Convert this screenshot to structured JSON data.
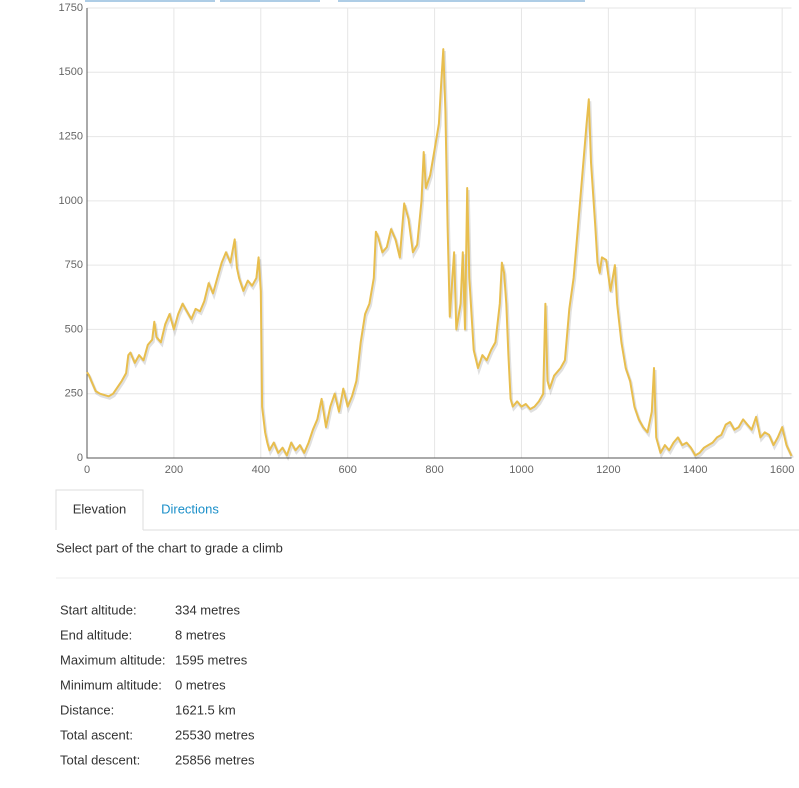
{
  "chart_data": {
    "type": "line",
    "x": [
      0,
      5,
      10,
      20,
      30,
      50,
      60,
      80,
      90,
      95,
      100,
      110,
      120,
      130,
      140,
      150,
      155,
      160,
      170,
      180,
      190,
      200,
      210,
      220,
      230,
      240,
      250,
      260,
      270,
      280,
      290,
      300,
      310,
      320,
      330,
      340,
      345,
      350,
      360,
      370,
      380,
      390,
      395,
      400,
      403,
      410,
      415,
      420,
      430,
      440,
      450,
      460,
      470,
      480,
      490,
      500,
      510,
      520,
      530,
      540,
      550,
      560,
      570,
      580,
      590,
      600,
      610,
      620,
      630,
      640,
      650,
      660,
      665,
      670,
      680,
      690,
      700,
      710,
      720,
      730,
      740,
      750,
      760,
      770,
      775,
      780,
      790,
      800,
      810,
      815,
      820,
      825,
      830,
      835,
      845,
      850,
      860,
      865,
      870,
      875,
      880,
      890,
      900,
      910,
      920,
      930,
      940,
      950,
      955,
      960,
      965,
      970,
      975,
      980,
      990,
      1000,
      1010,
      1020,
      1030,
      1040,
      1050,
      1055,
      1060,
      1065,
      1075,
      1090,
      1100,
      1110,
      1120,
      1130,
      1140,
      1150,
      1155,
      1160,
      1170,
      1175,
      1180,
      1185,
      1195,
      1205,
      1210,
      1215,
      1220,
      1230,
      1240,
      1250,
      1260,
      1270,
      1280,
      1290,
      1300,
      1305,
      1310,
      1320,
      1330,
      1340,
      1350,
      1360,
      1370,
      1380,
      1390,
      1400,
      1410,
      1420,
      1430,
      1440,
      1450,
      1460,
      1470,
      1480,
      1490,
      1500,
      1510,
      1520,
      1530,
      1540,
      1550,
      1560,
      1570,
      1580,
      1590,
      1600,
      1610,
      1621.5
    ],
    "values": [
      334,
      320,
      300,
      260,
      250,
      240,
      250,
      300,
      330,
      400,
      410,
      370,
      400,
      380,
      440,
      460,
      530,
      470,
      450,
      520,
      560,
      500,
      560,
      600,
      570,
      540,
      580,
      570,
      610,
      680,
      640,
      700,
      760,
      800,
      760,
      850,
      740,
      700,
      650,
      690,
      670,
      700,
      780,
      650,
      200,
      100,
      60,
      30,
      60,
      20,
      40,
      10,
      60,
      30,
      50,
      20,
      60,
      110,
      150,
      230,
      120,
      200,
      250,
      180,
      270,
      200,
      240,
      300,
      450,
      560,
      600,
      700,
      880,
      860,
      800,
      820,
      890,
      850,
      780,
      990,
      930,
      800,
      830,
      1000,
      1190,
      1050,
      1100,
      1200,
      1300,
      1450,
      1590,
      1350,
      900,
      550,
      800,
      500,
      600,
      800,
      500,
      1050,
      700,
      420,
      350,
      400,
      380,
      420,
      450,
      600,
      760,
      720,
      600,
      400,
      230,
      200,
      220,
      200,
      210,
      190,
      200,
      220,
      250,
      600,
      300,
      270,
      320,
      350,
      380,
      580,
      700,
      900,
      1100,
      1300,
      1395,
      1150,
      900,
      760,
      720,
      780,
      770,
      650,
      700,
      750,
      600,
      450,
      350,
      300,
      200,
      150,
      120,
      100,
      180,
      350,
      80,
      20,
      50,
      30,
      60,
      80,
      50,
      60,
      40,
      10,
      20,
      40,
      50,
      60,
      80,
      90,
      130,
      140,
      110,
      120,
      150,
      130,
      110,
      160,
      80,
      100,
      90,
      50,
      80,
      120,
      50,
      8
    ],
    "color": "#e8be4e",
    "xlim": [
      0,
      1621.5
    ],
    "xticks": [
      0,
      200,
      400,
      600,
      800,
      1000,
      1200,
      1400,
      1600
    ],
    "ylim": [
      0,
      1750
    ],
    "yticks": [
      0,
      250,
      500,
      750,
      1000,
      1250,
      1500,
      1750
    ],
    "grid": true
  },
  "tabs": [
    "Elevation",
    "Directions"
  ],
  "hint": "Select part of the chart to grade a climb",
  "stats": [
    {
      "label": "Start altitude:",
      "value": "334 metres"
    },
    {
      "label": "End altitude:",
      "value": "8 metres"
    },
    {
      "label": "Maximum altitude:",
      "value": "1595 metres"
    },
    {
      "label": "Minimum altitude:",
      "value": "0 metres"
    },
    {
      "label": "Distance:",
      "value": "1621.5 km"
    },
    {
      "label": "Total ascent:",
      "value": "25530 metres"
    },
    {
      "label": "Total descent:",
      "value": "25856 metres"
    }
  ]
}
